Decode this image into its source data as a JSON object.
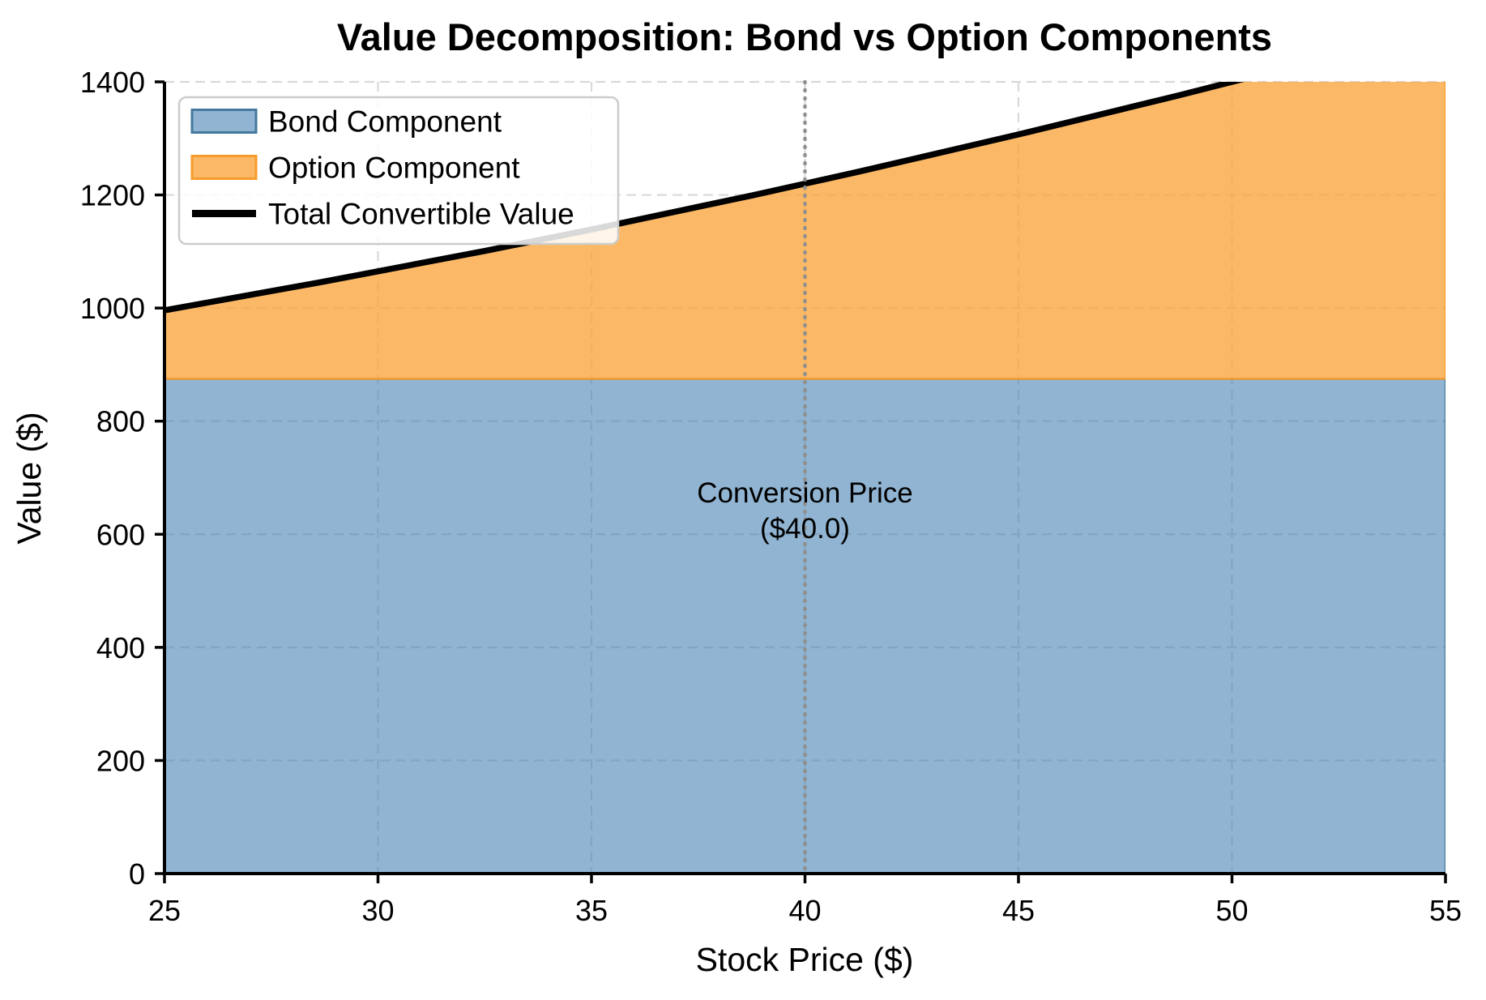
{
  "title": "Value Decomposition: Bond vs Option Components",
  "xlabel": "Stock Price ($)",
  "ylabel": "Value ($)",
  "annotation": {
    "line1": "Conversion Price",
    "line2": "($40.0)"
  },
  "legend": {
    "labels": [
      "Bond Component",
      "Option Component",
      "Total Convertible Value"
    ]
  },
  "colors": {
    "bond_fill": "#4682b4",
    "bond_fill_opacity": 0.6,
    "bond_edge": "#44799e",
    "option_fill": "#faa53c",
    "option_fill_opacity": 0.78,
    "option_edge": "#f79b2b",
    "total_line": "#000000",
    "grid": "#d9d9d9",
    "conversion_line": "#8f8f8f",
    "legend_border": "#cccccc",
    "legend_background": "rgba(255,255,255,0.85)",
    "text": "#000000"
  },
  "chart_data": {
    "type": "area",
    "stacked": true,
    "title": "Value Decomposition: Bond vs Option Components",
    "xlabel": "Stock Price ($)",
    "ylabel": "Value ($)",
    "xlim": [
      25,
      55
    ],
    "ylim": [
      0,
      1400
    ],
    "x_ticks": [
      25,
      30,
      35,
      40,
      45,
      50,
      55
    ],
    "y_ticks": [
      0,
      200,
      400,
      600,
      800,
      1000,
      1200,
      1400
    ],
    "grid": true,
    "legend_position": "upper left",
    "bond_floor": 875,
    "conversion_price": 40.0,
    "x": [
      25,
      26.25,
      27.5,
      28.75,
      30,
      31.25,
      32.5,
      33.75,
      35,
      36.25,
      37.5,
      38.75,
      40,
      41.25,
      42.5,
      43.75,
      45,
      46.25,
      47.5,
      48.75,
      50,
      51.25,
      52.5,
      53.75,
      55
    ],
    "series": [
      {
        "name": "Bond Component",
        "type": "area",
        "values": [
          875,
          875,
          875,
          875,
          875,
          875,
          875,
          875,
          875,
          875,
          875,
          875,
          875,
          875,
          875,
          875,
          875,
          875,
          875,
          875,
          875,
          875,
          875,
          875,
          875
        ]
      },
      {
        "name": "Option Component",
        "type": "area",
        "values": [
          121,
          138,
          155,
          172,
          190,
          208,
          226,
          245,
          264,
          284,
          304,
          324,
          345,
          366,
          388,
          410,
          432,
          455,
          478,
          501,
          525,
          549,
          574,
          599,
          624
        ]
      },
      {
        "name": "Total Convertible Value",
        "type": "line",
        "values": [
          996,
          1013,
          1030,
          1047,
          1065,
          1083,
          1101,
          1120,
          1139,
          1159,
          1179,
          1199,
          1220,
          1241,
          1263,
          1285,
          1307,
          1330,
          1353,
          1376,
          1400,
          1424,
          1449,
          1474,
          1499
        ]
      }
    ]
  }
}
